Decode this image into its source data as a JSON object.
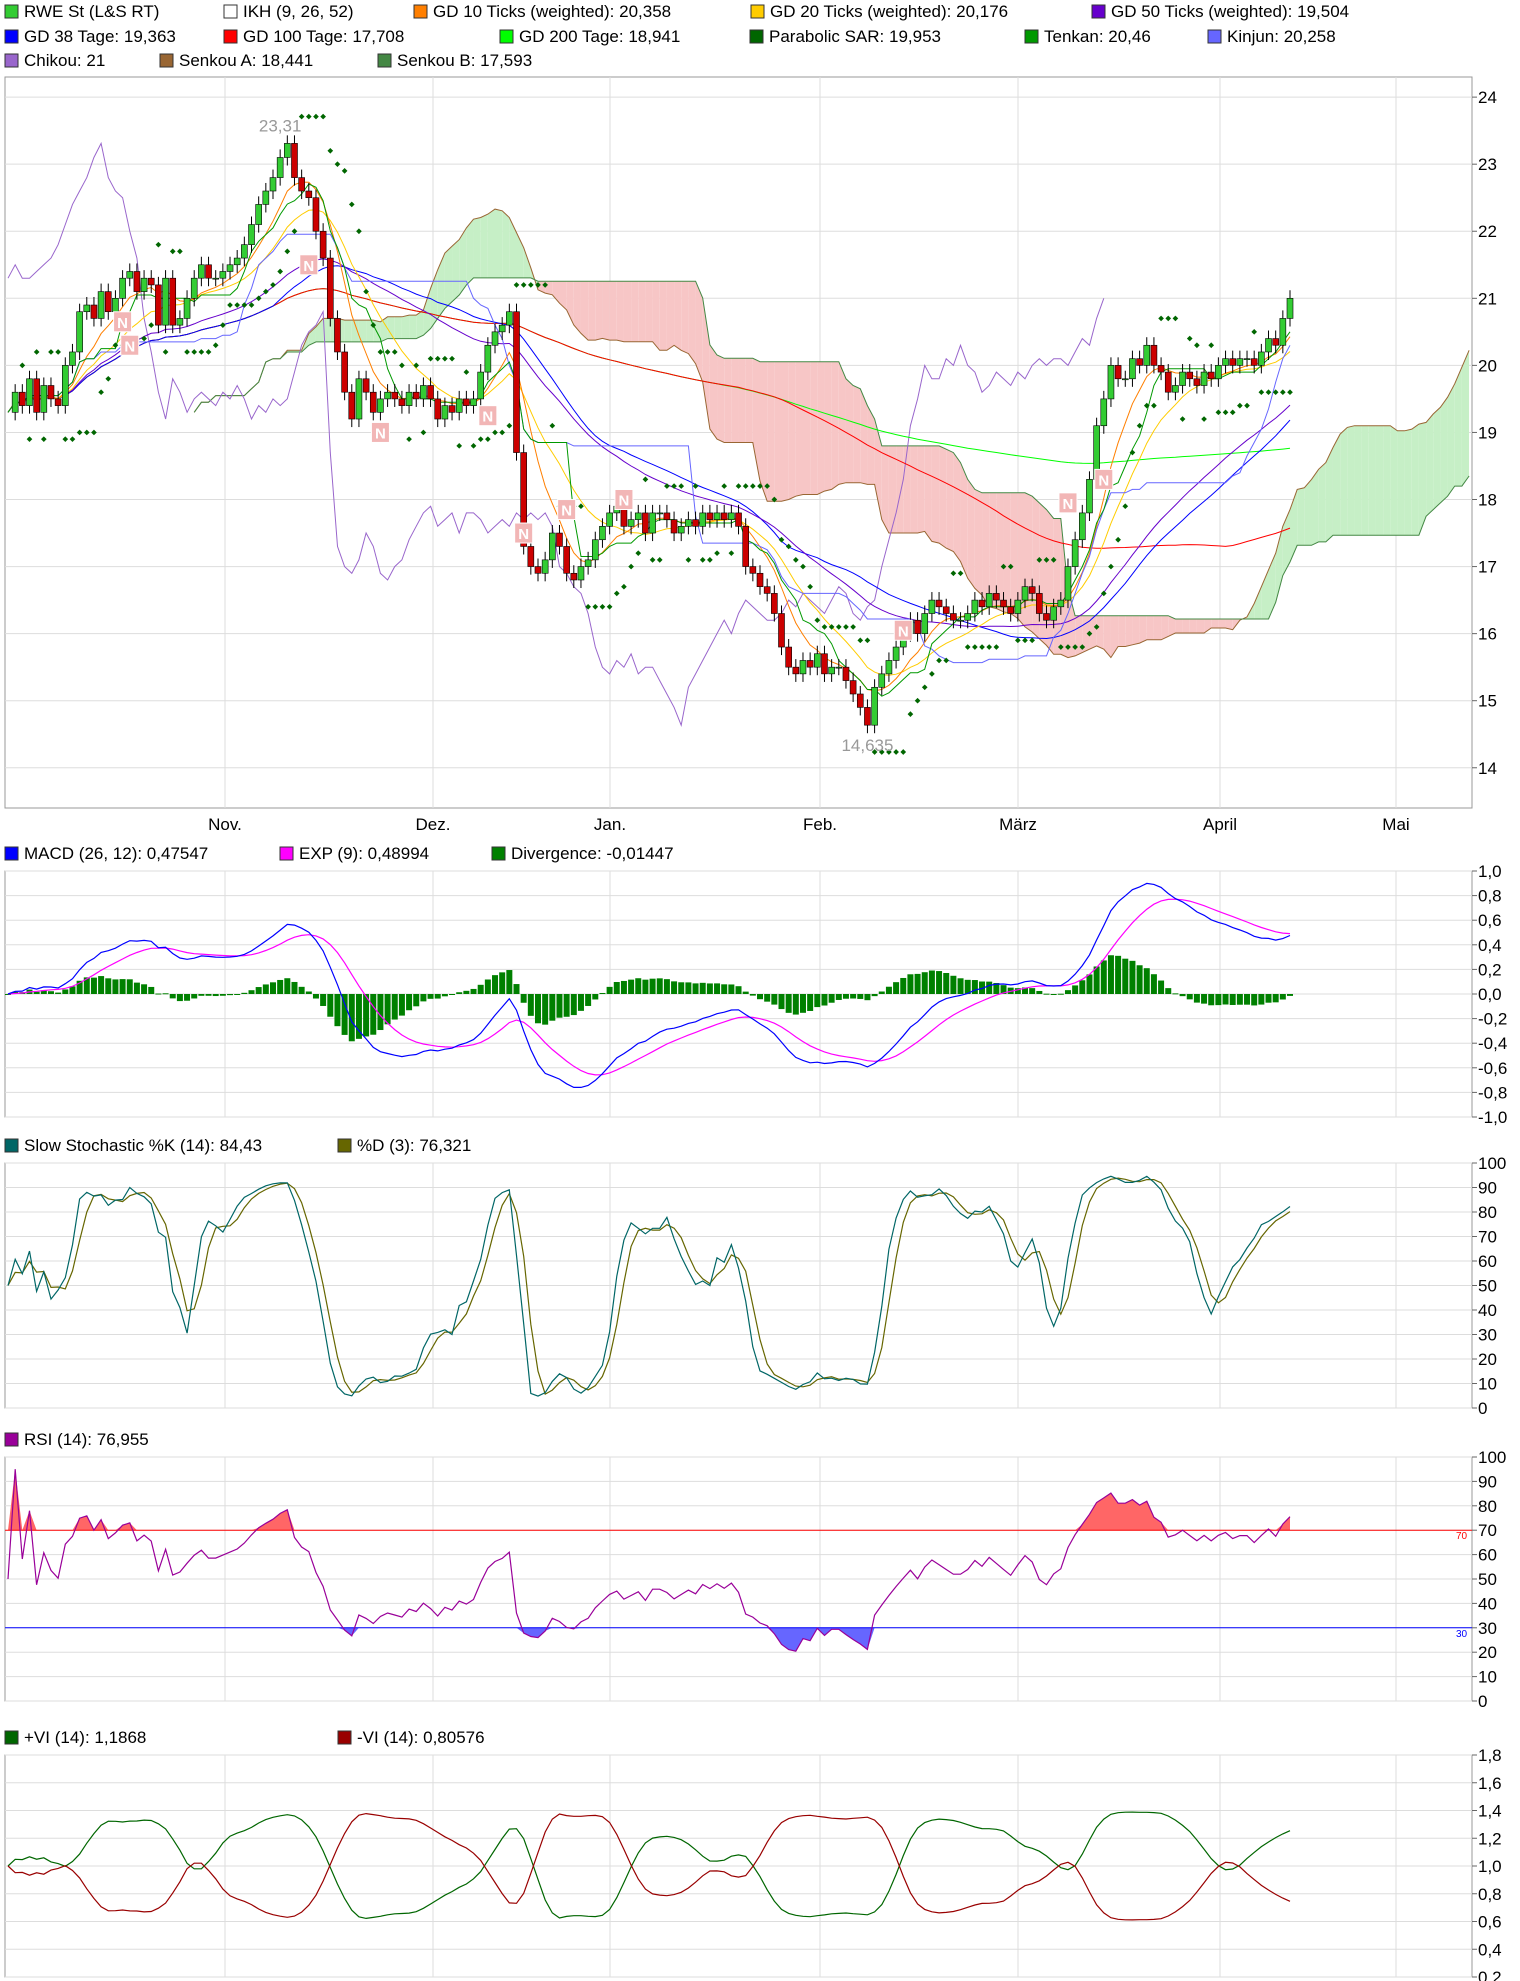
{
  "x_axis": {
    "months": [
      "Nov.",
      "Dez.",
      "Jan.",
      "Feb.",
      "März",
      "April",
      "Mai"
    ]
  },
  "chart_data": [
    {
      "type": "candlestick",
      "panel": "price",
      "legend": [
        {
          "label": "RWE St (L&S RT)",
          "color": "#33cc33"
        },
        {
          "label": "IKH (9, 26, 52)",
          "color": "#ffffff"
        },
        {
          "label": "GD 10 Ticks (weighted): 20,358",
          "color": "#ff7f00"
        },
        {
          "label": "GD 20 Ticks (weighted): 20,176",
          "color": "#ffcc00"
        },
        {
          "label": "GD 50 Ticks (weighted): 19,504",
          "color": "#6600cc"
        },
        {
          "label": "GD 38 Tage: 19,363",
          "color": "#0000ff"
        },
        {
          "label": "GD 100 Tage: 17,708",
          "color": "#ff0000"
        },
        {
          "label": "GD 200 Tage: 18,941",
          "color": "#00ff00"
        },
        {
          "label": "Parabolic SAR: 19,953",
          "color": "#006600"
        },
        {
          "label": "Tenkan: 20,46",
          "color": "#009900"
        },
        {
          "label": "Kinjun: 20,258",
          "color": "#6666ff"
        },
        {
          "label": "Chikou: 21",
          "color": "#9966cc"
        },
        {
          "label": "Senkou A: 18,441",
          "color": "#996633"
        },
        {
          "label": "Senkou B: 17,593",
          "color": "#448844"
        }
      ],
      "ylim": [
        13.4,
        24.3
      ],
      "y_ticks": [
        "14",
        "15",
        "16",
        "17",
        "18",
        "19",
        "20",
        "21",
        "22",
        "23",
        "24"
      ],
      "annotations": [
        {
          "text": "23,31",
          "x_index": 38,
          "y": 23.31,
          "position": "above"
        },
        {
          "text": "14,635",
          "x_index": 120,
          "y": 14.635,
          "position": "below"
        }
      ],
      "signals": [
        {
          "text": "N",
          "x_index": 16,
          "y": 20.65
        },
        {
          "text": "N",
          "x_index": 17,
          "y": 20.3
        },
        {
          "text": "N",
          "x_index": 42,
          "y": 21.5
        },
        {
          "text": "N",
          "x_index": 52,
          "y": 19.0
        },
        {
          "text": "N",
          "x_index": 67,
          "y": 19.25
        },
        {
          "text": "N",
          "x_index": 72,
          "y": 17.5
        },
        {
          "text": "N",
          "x_index": 78,
          "y": 17.85
        },
        {
          "text": "N",
          "x_index": 86,
          "y": 18.0
        },
        {
          "text": "N",
          "x_index": 125,
          "y": 16.05
        },
        {
          "text": "N",
          "x_index": 148,
          "y": 17.95
        },
        {
          "text": "N",
          "x_index": 153,
          "y": 18.3
        }
      ],
      "close": [
        19.3,
        19.6,
        19.4,
        19.8,
        19.3,
        19.7,
        19.5,
        19.4,
        20.0,
        20.2,
        20.8,
        20.9,
        20.7,
        21.1,
        20.8,
        21.0,
        21.3,
        21.4,
        21.1,
        21.3,
        21.2,
        20.6,
        21.3,
        20.6,
        20.7,
        21.0,
        21.3,
        21.5,
        21.3,
        21.3,
        21.4,
        21.5,
        21.6,
        21.8,
        22.1,
        22.4,
        22.6,
        22.8,
        23.1,
        23.31,
        22.8,
        22.6,
        22.5,
        22.0,
        21.6,
        20.7,
        20.2,
        19.6,
        19.2,
        19.8,
        19.6,
        19.3,
        19.5,
        19.6,
        19.5,
        19.4,
        19.6,
        19.5,
        19.7,
        19.5,
        19.2,
        19.4,
        19.3,
        19.5,
        19.4,
        19.5,
        19.9,
        20.3,
        20.5,
        20.6,
        20.8,
        18.7,
        17.3,
        17.0,
        16.9,
        17.1,
        17.5,
        17.3,
        16.9,
        16.8,
        17.0,
        17.1,
        17.4,
        17.6,
        17.8,
        17.9,
        17.6,
        17.7,
        17.8,
        17.5,
        17.8,
        17.8,
        17.7,
        17.5,
        17.6,
        17.7,
        17.6,
        17.8,
        17.7,
        17.8,
        17.7,
        17.8,
        17.6,
        17.0,
        16.9,
        16.7,
        16.6,
        16.3,
        15.8,
        15.5,
        15.4,
        15.6,
        15.5,
        15.7,
        15.4,
        15.5,
        15.5,
        15.3,
        15.1,
        14.9,
        14.635,
        15.2,
        15.4,
        15.6,
        15.8,
        16.0,
        16.2,
        16.0,
        16.3,
        16.5,
        16.4,
        16.3,
        16.2,
        16.2,
        16.3,
        16.5,
        16.4,
        16.6,
        16.5,
        16.4,
        16.3,
        16.5,
        16.7,
        16.6,
        16.3,
        16.2,
        16.4,
        16.5,
        17.0,
        17.4,
        17.8,
        18.3,
        19.1,
        19.5,
        20.0,
        19.8,
        19.8,
        20.1,
        20.0,
        20.3,
        20.0,
        19.9,
        19.6,
        19.7,
        19.9,
        19.8,
        19.7,
        19.9,
        19.8,
        20.0,
        20.1,
        20.0,
        20.1,
        20.1,
        20.0,
        20.2,
        20.4,
        20.3,
        20.7,
        21.0
      ],
      "max_volume_note": ""
    },
    {
      "type": "line",
      "panel": "macd",
      "legend": [
        {
          "label": "MACD (26, 12): 0,47547",
          "color": "#0000ff"
        },
        {
          "label": "EXP (9): 0,48994",
          "color": "#ff00ff"
        },
        {
          "label": "Divergence: -0,01447",
          "color": "#008000"
        }
      ],
      "ylim": [
        -1.0,
        1.0
      ],
      "y_ticks": [
        "1,0",
        "0,8",
        "0,6",
        "0,4",
        "0,2",
        "0,0",
        "-0,2",
        "-0,4",
        "-0,6",
        "-0,8",
        "-1,0"
      ]
    },
    {
      "type": "line",
      "panel": "stochastic",
      "legend": [
        {
          "label": "Slow Stochastic %K (14): 84,43",
          "color": "#006666"
        },
        {
          "label": "%D (3): 76,321",
          "color": "#666600"
        }
      ],
      "ylim": [
        0,
        100
      ],
      "y_ticks": [
        "100",
        "90",
        "80",
        "70",
        "60",
        "50",
        "40",
        "30",
        "20",
        "10",
        "0"
      ]
    },
    {
      "type": "line",
      "panel": "rsi",
      "legend": [
        {
          "label": "RSI (14): 76,955",
          "color": "#990099"
        }
      ],
      "ylim": [
        0,
        100
      ],
      "y_ticks": [
        "100",
        "90",
        "80",
        "70",
        "60",
        "50",
        "40",
        "30",
        "20",
        "10",
        "0"
      ],
      "reference_lines": [
        {
          "value": 70,
          "label": "70",
          "color": "#ff0000"
        },
        {
          "value": 30,
          "label": "30",
          "color": "#0000ff"
        }
      ]
    },
    {
      "type": "line",
      "panel": "vortex",
      "legend": [
        {
          "label": "+VI (14): 1,1868",
          "color": "#006600"
        },
        {
          "label": "-VI (14): 0,80576",
          "color": "#990000"
        }
      ],
      "ylim": [
        0.2,
        1.8
      ],
      "y_ticks": [
        "1,8",
        "1,6",
        "1,4",
        "1,2",
        "1,0",
        "0,8",
        "0,6",
        "0,4",
        "0,2"
      ]
    }
  ]
}
